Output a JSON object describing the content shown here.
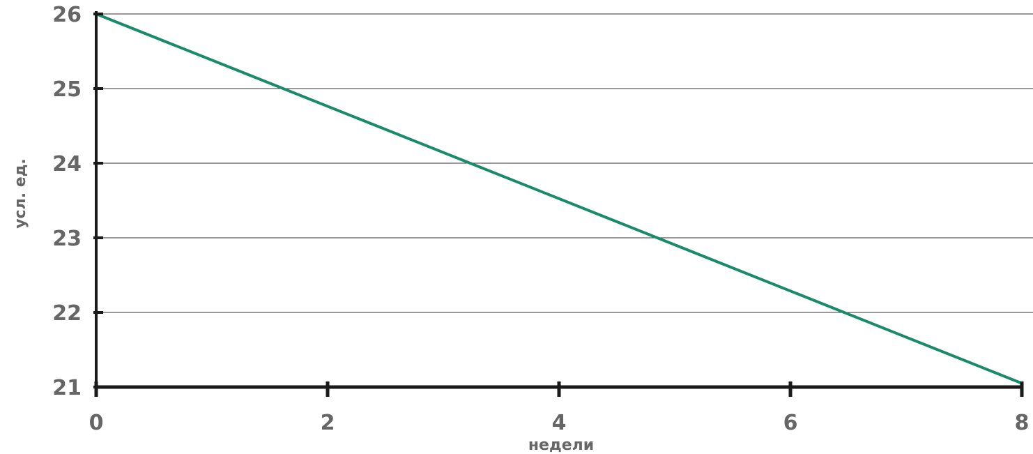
{
  "chart_data": {
    "type": "line",
    "xlabel": "недели",
    "ylabel": "усл. ед.",
    "xlim": [
      0,
      8
    ],
    "ylim": [
      21,
      26
    ],
    "x_ticks": [
      0,
      2,
      4,
      6,
      8
    ],
    "y_ticks": [
      21,
      22,
      23,
      24,
      25,
      26
    ],
    "grid": "horizontal",
    "colors": {
      "line": "#1a8a6a",
      "axis": "#1a1a1a",
      "grid": "#333333",
      "tick_label": "#666666"
    },
    "series": [
      {
        "x": [
          0,
          8
        ],
        "y": [
          26,
          21.05
        ]
      }
    ]
  }
}
